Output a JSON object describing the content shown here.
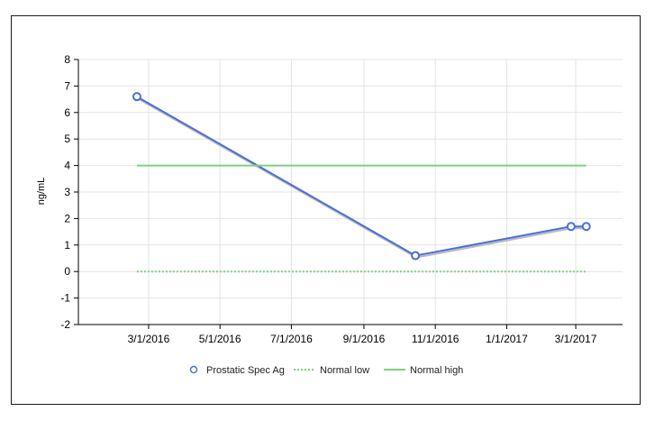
{
  "chart_data": {
    "type": "line",
    "title": "",
    "xlabel": "",
    "ylabel": "ng/mL",
    "ylim": [
      -2,
      8
    ],
    "yticks": [
      -2,
      -1,
      0,
      1,
      2,
      3,
      4,
      5,
      6,
      7,
      8
    ],
    "xlim": [
      "2016-01-01",
      "2017-04-10"
    ],
    "xticks": [
      {
        "date": "2016-03-01",
        "label": "3/1/2016"
      },
      {
        "date": "2016-05-01",
        "label": "5/1/2016"
      },
      {
        "date": "2016-07-01",
        "label": "7/1/2016"
      },
      {
        "date": "2016-09-01",
        "label": "9/1/2016"
      },
      {
        "date": "2016-11-01",
        "label": "11/1/2016"
      },
      {
        "date": "2017-01-01",
        "label": "1/1/2017"
      },
      {
        "date": "2017-03-01",
        "label": "3/1/2017"
      }
    ],
    "grid": true,
    "legend_position": "bottom",
    "series": [
      {
        "name": "Prostatic Spec Ag",
        "style": "line-markers",
        "color": "#4a6fd8",
        "points": [
          {
            "x": "2016-02-20",
            "y": 6.6
          },
          {
            "x": "2016-10-15",
            "y": 0.6
          },
          {
            "x": "2017-02-25",
            "y": 1.7
          },
          {
            "x": "2017-03-10",
            "y": 1.7
          }
        ]
      },
      {
        "name": "Normal low",
        "style": "dotted",
        "color": "#7dd17d",
        "points": [
          {
            "x": "2016-02-20",
            "y": 0
          },
          {
            "x": "2017-03-10",
            "y": 0
          }
        ]
      },
      {
        "name": "Normal high",
        "style": "solid",
        "color": "#7dd17d",
        "points": [
          {
            "x": "2016-02-20",
            "y": 4
          },
          {
            "x": "2017-03-10",
            "y": 4
          }
        ]
      }
    ]
  }
}
